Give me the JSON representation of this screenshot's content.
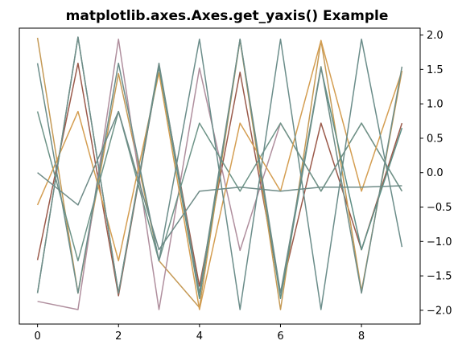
{
  "chart_data": {
    "type": "line",
    "title": "matplotlib.axes.Axes.get_yaxis() Example",
    "xlabel": "",
    "ylabel": "",
    "xlim": [
      -0.45,
      9.45
    ],
    "ylim": [
      -2.2,
      2.1
    ],
    "yaxis_position": "right",
    "grid": false,
    "legend": "none",
    "xticks": [
      0,
      2,
      4,
      6,
      8
    ],
    "xtick_labels": [
      "0",
      "2",
      "4",
      "6",
      "8"
    ],
    "yticks": [
      2.0,
      1.5,
      1.0,
      0.5,
      0.0,
      -0.5,
      -1.0,
      -1.5,
      -2.0
    ],
    "ytick_labels": [
      "2.0",
      "1.5",
      "1.0",
      "0.5",
      "0.0",
      "−0.5",
      "−1.0",
      "−1.5",
      "−2.0"
    ],
    "x": [
      0,
      1,
      2,
      3,
      4,
      5,
      6,
      7,
      8,
      9
    ],
    "series": [
      {
        "color": "#9b5a4b",
        "values": [
          -1.27,
          1.59,
          -1.79,
          1.54,
          -1.65,
          1.46,
          -1.75,
          0.72,
          -1.12,
          0.72
        ]
      },
      {
        "color": "#c59a56",
        "values": [
          1.96,
          -1.75,
          1.44,
          -1.28,
          -1.96,
          1.93,
          -1.99,
          1.92,
          -1.72,
          1.48
        ]
      },
      {
        "color": "#b08f9e",
        "values": [
          -1.87,
          -1.99,
          1.94,
          -1.99,
          1.52,
          -1.13,
          0.72,
          -0.27,
          0.72,
          -0.27
        ]
      },
      {
        "color": "#6e9488",
        "values": [
          0.89,
          -1.28,
          0.89,
          -1.28,
          0.72,
          -0.27,
          0.72,
          -0.27,
          0.72,
          -0.27
        ]
      },
      {
        "color": "#d49e52",
        "values": [
          -0.47,
          0.89,
          -1.28,
          1.45,
          -1.99,
          0.72,
          -0.27,
          1.92,
          -0.27,
          1.48
        ]
      },
      {
        "color": "#6b8d8a",
        "values": [
          1.59,
          -1.75,
          1.59,
          -1.28,
          1.94,
          -1.99,
          1.94,
          -1.99,
          1.94,
          -1.08
        ]
      },
      {
        "color": "#6e8b87",
        "values": [
          0.0,
          -0.47,
          0.89,
          -1.12,
          -0.27,
          -0.21,
          -0.27,
          -0.21,
          -0.21,
          -0.19
        ]
      },
      {
        "color": "#5f8f86",
        "values": [
          -1.75,
          1.97,
          -1.75,
          1.54,
          -1.83,
          1.94,
          -1.83,
          1.52,
          -1.12,
          0.65
        ]
      },
      {
        "color": "#6f8d88",
        "values": [
          -1.75,
          1.97,
          -1.75,
          1.59,
          -1.75,
          1.94,
          -1.75,
          1.54,
          -1.75,
          1.54
        ]
      }
    ]
  }
}
